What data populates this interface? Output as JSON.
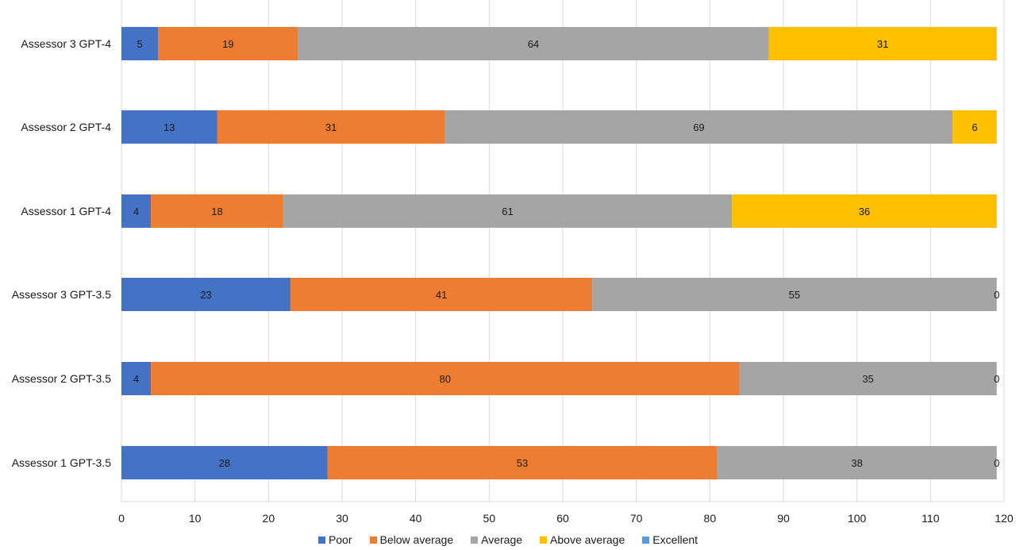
{
  "chart_data": {
    "type": "bar",
    "orientation": "horizontal",
    "stacked": true,
    "categories": [
      "Assessor 3 GPT-4",
      "Assessor 2 GPT-4",
      "Assessor 1 GPT-4",
      "Assessor 3 GPT-3.5",
      "Assessor 2 GPT-3.5",
      "Assessor 1 GPT-3.5"
    ],
    "series": [
      {
        "name": "Poor",
        "color": "#4472c4",
        "values": [
          5,
          13,
          4,
          23,
          4,
          28
        ]
      },
      {
        "name": "Below average",
        "color": "#ed7d31",
        "values": [
          19,
          31,
          18,
          41,
          80,
          53
        ]
      },
      {
        "name": "Average",
        "color": "#a5a5a5",
        "values": [
          64,
          69,
          61,
          55,
          35,
          38
        ]
      },
      {
        "name": "Above average",
        "color": "#ffc000",
        "values": [
          31,
          6,
          36,
          0,
          0,
          0
        ]
      },
      {
        "name": "Excellent",
        "color": "#5b9bd5",
        "values": [
          0,
          0,
          0,
          0,
          0,
          0
        ]
      }
    ],
    "data_labels": [
      [
        "5",
        "19",
        "64",
        "31",
        "",
        ""
      ],
      [
        "13",
        "31",
        "69",
        "6",
        "",
        ""
      ],
      [
        "4",
        "18",
        "61",
        "36",
        "",
        ""
      ],
      [
        "23",
        "41",
        "55",
        "0",
        "",
        ""
      ],
      [
        "4",
        "80",
        "35",
        "0",
        "",
        ""
      ],
      [
        "28",
        "53",
        "38",
        "0",
        "",
        ""
      ]
    ],
    "xlim": [
      0,
      120
    ],
    "x_ticks": [
      0,
      10,
      20,
      30,
      40,
      50,
      60,
      70,
      80,
      90,
      100,
      110,
      120
    ],
    "grid": "vertical",
    "legend_position": "bottom"
  }
}
